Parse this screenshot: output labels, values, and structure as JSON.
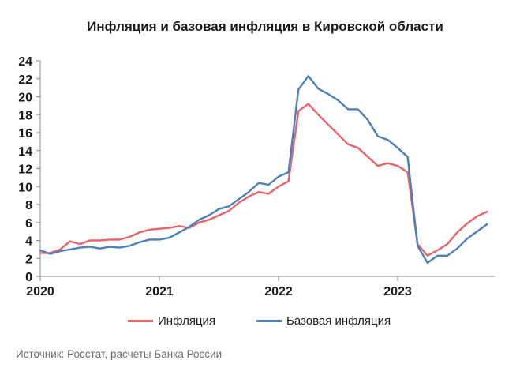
{
  "chart_data": {
    "type": "line",
    "title": "Инфляция и базовая инфляция в Кировской области",
    "xlabel": "",
    "ylabel": "",
    "ylim": [
      0,
      24
    ],
    "y_ticks": [
      0,
      2,
      4,
      6,
      8,
      10,
      12,
      14,
      16,
      18,
      20,
      22,
      24
    ],
    "x_ticks": [
      "2020",
      "2021",
      "2022",
      "2023"
    ],
    "grid": false,
    "legend_position": "bottom",
    "x": [
      "2020-01",
      "2020-02",
      "2020-03",
      "2020-04",
      "2020-05",
      "2020-06",
      "2020-07",
      "2020-08",
      "2020-09",
      "2020-10",
      "2020-11",
      "2020-12",
      "2021-01",
      "2021-02",
      "2021-03",
      "2021-04",
      "2021-05",
      "2021-06",
      "2021-07",
      "2021-08",
      "2021-09",
      "2021-10",
      "2021-11",
      "2021-12",
      "2022-01",
      "2022-02",
      "2022-03",
      "2022-04",
      "2022-05",
      "2022-06",
      "2022-07",
      "2022-08",
      "2022-09",
      "2022-10",
      "2022-11",
      "2022-12",
      "2023-01",
      "2023-02",
      "2023-03",
      "2023-04",
      "2023-05",
      "2023-06",
      "2023-07",
      "2023-08",
      "2023-09",
      "2023-10"
    ],
    "series": [
      {
        "name": "Инфляция",
        "color": "#e8636a",
        "values": [
          2.6,
          2.6,
          3.0,
          3.9,
          3.6,
          4.0,
          4.0,
          4.1,
          4.1,
          4.4,
          4.9,
          5.2,
          5.3,
          5.4,
          5.6,
          5.4,
          6.0,
          6.3,
          6.8,
          7.3,
          8.2,
          8.9,
          9.4,
          9.2,
          10.0,
          10.6,
          18.4,
          19.2,
          18.0,
          16.9,
          15.8,
          14.7,
          14.3,
          13.3,
          12.3,
          12.6,
          12.3,
          11.6,
          3.6,
          2.3,
          2.9,
          3.6,
          4.9,
          5.9,
          6.7,
          7.2
        ]
      },
      {
        "name": "Базовая инфляция",
        "color": "#4d7fb8",
        "values": [
          2.9,
          2.5,
          2.8,
          3.0,
          3.2,
          3.3,
          3.1,
          3.3,
          3.2,
          3.4,
          3.8,
          4.1,
          4.1,
          4.3,
          4.9,
          5.5,
          6.3,
          6.8,
          7.5,
          7.8,
          8.6,
          9.4,
          10.4,
          10.2,
          11.1,
          11.6,
          20.8,
          22.3,
          20.9,
          20.3,
          19.6,
          18.6,
          18.6,
          17.4,
          15.6,
          15.2,
          14.3,
          13.3,
          3.4,
          1.5,
          2.3,
          2.3,
          3.1,
          4.2,
          5.0,
          5.8
        ]
      }
    ]
  },
  "footer": {
    "source": "Источник: Росстат, расчеты Банка России"
  }
}
